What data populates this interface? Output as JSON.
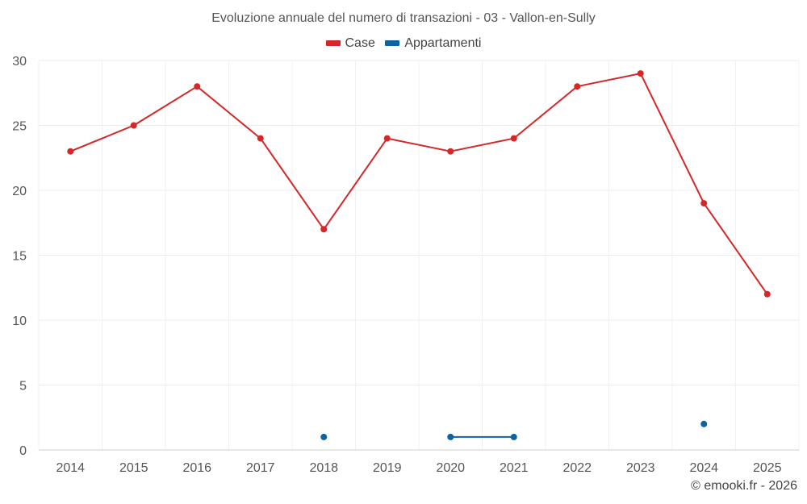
{
  "title": "Evoluzione annuale del numero di transazioni - 03 - Vallon-en-Sully",
  "credit": "© emooki.fr - 2026",
  "chart_data": {
    "type": "line",
    "categories": [
      "2014",
      "2015",
      "2016",
      "2017",
      "2018",
      "2019",
      "2020",
      "2021",
      "2022",
      "2023",
      "2024",
      "2025"
    ],
    "ylim": [
      0,
      30
    ],
    "yticks": [
      0,
      5,
      10,
      15,
      20,
      25,
      30
    ],
    "grid": true,
    "legend_position": "top",
    "series": [
      {
        "name": "Case",
        "color": "#d62728",
        "values": [
          23,
          25,
          28,
          24,
          17,
          24,
          23,
          24,
          28,
          29,
          19,
          12
        ]
      },
      {
        "name": "Appartamenti",
        "color": "#0b64a0",
        "values": [
          null,
          null,
          null,
          null,
          1,
          null,
          1,
          1,
          null,
          null,
          2,
          null
        ]
      }
    ]
  }
}
